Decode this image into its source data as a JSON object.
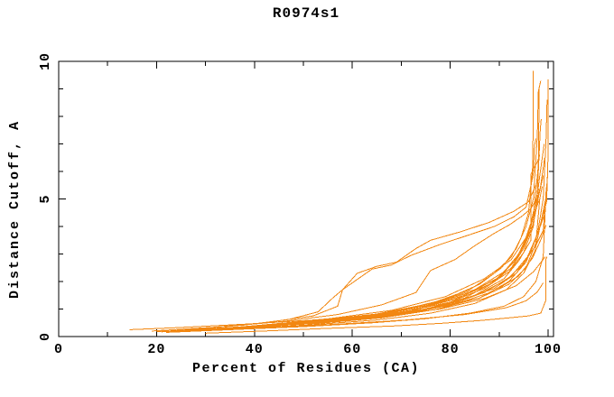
{
  "chart_data": {
    "type": "line",
    "title": "R0974s1",
    "xlabel": "Percent of Residues (CA)",
    "ylabel": "Distance Cutoff, A",
    "xlim": [
      0,
      100
    ],
    "ylim": [
      0,
      10
    ],
    "grid": false,
    "legend": null,
    "x_major_ticks": [
      0,
      20,
      40,
      60,
      80,
      100
    ],
    "x_minor_ticks": [
      10,
      30,
      50,
      70,
      90
    ],
    "y_major_ticks": [
      0,
      5,
      10
    ],
    "y_minor_ticks": [
      1,
      2,
      3,
      4,
      6,
      7,
      8,
      9
    ],
    "line_color": "#f28711",
    "axis_color": "#000000",
    "background_color": "#ffffff",
    "series": [
      [
        [
          30,
          0.12
        ],
        [
          42,
          0.2
        ],
        [
          55,
          0.3
        ],
        [
          68,
          0.38
        ],
        [
          78,
          0.48
        ],
        [
          86,
          0.58
        ],
        [
          92,
          0.68
        ],
        [
          96,
          0.75
        ],
        [
          98.5,
          0.85
        ],
        [
          99.5,
          1.3
        ],
        [
          99.5,
          2.8
        ],
        [
          99.8,
          2.9
        ]
      ],
      [
        [
          22,
          0.15
        ],
        [
          35,
          0.25
        ],
        [
          50,
          0.36
        ],
        [
          64,
          0.5
        ],
        [
          75,
          0.65
        ],
        [
          84,
          0.85
        ],
        [
          91,
          1.1
        ],
        [
          95,
          1.45
        ],
        [
          97.5,
          2.0
        ],
        [
          99,
          2.9
        ],
        [
          99.6,
          5.3
        ],
        [
          99.8,
          5.6
        ]
      ],
      [
        [
          14.5,
          0.25
        ],
        [
          24,
          0.32
        ],
        [
          38,
          0.45
        ],
        [
          52,
          0.6
        ],
        [
          66,
          0.8
        ],
        [
          77,
          1.05
        ],
        [
          86,
          1.4
        ],
        [
          92,
          1.9
        ],
        [
          95.5,
          2.5
        ],
        [
          97.5,
          3.4
        ],
        [
          98.3,
          5.0
        ],
        [
          98.8,
          5.45
        ]
      ],
      [
        [
          26,
          0.25
        ],
        [
          38,
          0.42
        ],
        [
          47,
          0.62
        ],
        [
          53,
          0.9
        ],
        [
          56,
          1.4
        ],
        [
          58,
          1.7
        ],
        [
          61,
          2.3
        ],
        [
          65,
          2.55
        ],
        [
          69,
          2.7
        ],
        [
          73,
          3.2
        ],
        [
          76,
          3.5
        ],
        [
          82,
          3.8
        ],
        [
          88,
          4.15
        ],
        [
          93,
          4.55
        ],
        [
          96,
          4.9
        ],
        [
          97.5,
          5.5
        ],
        [
          98,
          5.75
        ]
      ],
      [
        [
          28,
          0.28
        ],
        [
          42,
          0.5
        ],
        [
          52,
          0.75
        ],
        [
          57,
          1.1
        ],
        [
          58,
          1.7
        ],
        [
          60,
          1.95
        ],
        [
          64,
          2.45
        ],
        [
          68,
          2.6
        ],
        [
          72,
          2.95
        ],
        [
          78,
          3.35
        ],
        [
          84,
          3.7
        ],
        [
          89,
          4.0
        ],
        [
          93,
          4.35
        ],
        [
          95.5,
          4.7
        ],
        [
          97,
          5.9
        ],
        [
          97.2,
          6.9
        ],
        [
          97.5,
          7.2
        ]
      ],
      [
        [
          24,
          0.22
        ],
        [
          40,
          0.38
        ],
        [
          55,
          0.58
        ],
        [
          67,
          0.85
        ],
        [
          76,
          1.2
        ],
        [
          84,
          1.7
        ],
        [
          89,
          2.3
        ],
        [
          92.5,
          2.9
        ],
        [
          94.5,
          3.6
        ],
        [
          96,
          4.5
        ],
        [
          96.8,
          6.0
        ],
        [
          97,
          8.0
        ],
        [
          97,
          9.65
        ]
      ],
      [
        [
          27,
          0.24
        ],
        [
          42,
          0.4
        ],
        [
          57,
          0.62
        ],
        [
          69,
          0.92
        ],
        [
          79,
          1.35
        ],
        [
          86,
          1.9
        ],
        [
          90.5,
          2.5
        ],
        [
          93.5,
          3.2
        ],
        [
          95.5,
          4.0
        ],
        [
          97,
          5.0
        ],
        [
          97.8,
          7.3
        ],
        [
          98,
          8.9
        ],
        [
          98.5,
          9.3
        ]
      ],
      [
        [
          20,
          0.18
        ],
        [
          34,
          0.3
        ],
        [
          48,
          0.45
        ],
        [
          62,
          0.65
        ],
        [
          74,
          0.95
        ],
        [
          83,
          1.4
        ],
        [
          89,
          2.0
        ],
        [
          93,
          2.7
        ],
        [
          95.5,
          3.5
        ],
        [
          97,
          4.4
        ],
        [
          98,
          6.2
        ],
        [
          98.2,
          9.0
        ]
      ],
      [
        [
          30,
          0.26
        ],
        [
          45,
          0.44
        ],
        [
          60,
          0.66
        ],
        [
          72,
          0.95
        ],
        [
          81,
          1.35
        ],
        [
          88,
          1.9
        ],
        [
          92.5,
          2.5
        ],
        [
          95,
          3.2
        ],
        [
          97,
          4.1
        ],
        [
          98.5,
          5.5
        ],
        [
          99.3,
          6.5
        ]
      ],
      [
        [
          32,
          0.28
        ],
        [
          48,
          0.48
        ],
        [
          62,
          0.72
        ],
        [
          74,
          1.05
        ],
        [
          83,
          1.5
        ],
        [
          89.5,
          2.1
        ],
        [
          93.5,
          2.8
        ],
        [
          96,
          3.7
        ],
        [
          97.8,
          5.2
        ],
        [
          98.4,
          7.5
        ],
        [
          98.6,
          7.9
        ]
      ],
      [
        [
          25,
          0.2
        ],
        [
          40,
          0.34
        ],
        [
          54,
          0.5
        ],
        [
          67,
          0.72
        ],
        [
          77,
          1.05
        ],
        [
          85,
          1.5
        ],
        [
          91,
          2.1
        ],
        [
          94,
          2.75
        ],
        [
          96.5,
          3.5
        ],
        [
          96.5,
          5.9
        ],
        [
          97.8,
          6.35
        ],
        [
          98.3,
          6.6
        ]
      ],
      [
        [
          29,
          0.25
        ],
        [
          44,
          0.42
        ],
        [
          58,
          0.6
        ],
        [
          70,
          0.88
        ],
        [
          80,
          1.25
        ],
        [
          87,
          1.75
        ],
        [
          92,
          2.35
        ],
        [
          95,
          3.05
        ],
        [
          97,
          4.0
        ],
        [
          98.2,
          5.7
        ],
        [
          99.2,
          7.0
        ]
      ],
      [
        [
          33,
          0.3
        ],
        [
          49,
          0.5
        ],
        [
          63,
          0.76
        ],
        [
          75,
          1.12
        ],
        [
          84,
          1.6
        ],
        [
          90.5,
          2.2
        ],
        [
          94,
          3.0
        ],
        [
          96.5,
          4.0
        ],
        [
          98.2,
          5.2
        ],
        [
          99,
          5.85
        ]
      ],
      [
        [
          21,
          0.17
        ],
        [
          36,
          0.28
        ],
        [
          51,
          0.42
        ],
        [
          65,
          0.6
        ],
        [
          76,
          0.85
        ],
        [
          85,
          1.2
        ],
        [
          91.5,
          1.7
        ],
        [
          95,
          2.3
        ],
        [
          97.3,
          3.1
        ],
        [
          98.7,
          4.3
        ],
        [
          99.5,
          5.0
        ]
      ],
      [
        [
          23,
          0.2
        ],
        [
          38,
          0.33
        ],
        [
          53,
          0.48
        ],
        [
          66,
          0.68
        ],
        [
          77,
          0.98
        ],
        [
          86,
          1.4
        ],
        [
          92,
          2.0
        ],
        [
          95.5,
          2.7
        ],
        [
          97.8,
          3.7
        ],
        [
          99,
          5.0
        ],
        [
          99.6,
          7.2
        ],
        [
          99.8,
          8.6
        ]
      ],
      [
        [
          35,
          0.32
        ],
        [
          51,
          0.55
        ],
        [
          65,
          0.82
        ],
        [
          76,
          1.2
        ],
        [
          85,
          1.7
        ],
        [
          91,
          2.35
        ],
        [
          94.5,
          3.1
        ],
        [
          96.8,
          4.0
        ],
        [
          97.9,
          5.0
        ],
        [
          98.2,
          5.35
        ]
      ],
      [
        [
          38,
          0.36
        ],
        [
          54,
          0.62
        ],
        [
          68,
          0.95
        ],
        [
          79,
          1.45
        ],
        [
          87,
          2.1
        ],
        [
          92.5,
          2.8
        ],
        [
          95.5,
          3.6
        ],
        [
          97.2,
          4.5
        ],
        [
          98.4,
          5.05
        ]
      ],
      [
        [
          26,
          0.22
        ],
        [
          41,
          0.37
        ],
        [
          56,
          0.55
        ],
        [
          69,
          0.8
        ],
        [
          79,
          1.15
        ],
        [
          87,
          1.6
        ],
        [
          92.5,
          2.2
        ],
        [
          95.8,
          2.9
        ],
        [
          98,
          3.8
        ],
        [
          99.7,
          4.9
        ],
        [
          100,
          6.6
        ],
        [
          100,
          9.35
        ]
      ],
      [
        [
          31,
          0.27
        ],
        [
          46,
          0.44
        ],
        [
          60,
          0.64
        ],
        [
          72,
          0.9
        ],
        [
          82,
          1.28
        ],
        [
          89,
          1.75
        ],
        [
          93.5,
          2.3
        ],
        [
          96.3,
          3.0
        ],
        [
          98.2,
          3.9
        ],
        [
          99.4,
          4.5
        ]
      ],
      [
        [
          28,
          0.23
        ],
        [
          43,
          0.38
        ],
        [
          58,
          0.57
        ],
        [
          71,
          0.82
        ],
        [
          81,
          1.18
        ],
        [
          89,
          1.65
        ],
        [
          94,
          2.2
        ],
        [
          96.8,
          2.85
        ],
        [
          98.6,
          3.55
        ],
        [
          99.6,
          4.05
        ]
      ],
      [
        [
          34,
          0.3
        ],
        [
          50,
          0.48
        ],
        [
          64,
          0.7
        ],
        [
          76,
          1.02
        ],
        [
          85,
          1.48
        ],
        [
          91.5,
          2.05
        ],
        [
          95,
          2.65
        ],
        [
          97.6,
          3.35
        ],
        [
          99,
          3.85
        ],
        [
          99.9,
          5.85
        ]
      ],
      [
        [
          36,
          0.3
        ],
        [
          52,
          0.5
        ],
        [
          66,
          0.72
        ],
        [
          78,
          1.0
        ],
        [
          87,
          1.38
        ],
        [
          93.5,
          1.85
        ],
        [
          97,
          2.35
        ],
        [
          99,
          2.8
        ],
        [
          99.4,
          2.9
        ]
      ],
      [
        [
          40,
          0.3
        ],
        [
          57,
          0.45
        ],
        [
          71,
          0.6
        ],
        [
          83,
          0.8
        ],
        [
          91.5,
          1.05
        ],
        [
          95.5,
          1.3
        ],
        [
          97.8,
          1.62
        ],
        [
          99,
          1.95
        ]
      ],
      [
        [
          19,
          0.2
        ],
        [
          33,
          0.35
        ],
        [
          46,
          0.55
        ],
        [
          57,
          0.8
        ],
        [
          66,
          1.15
        ],
        [
          73,
          1.6
        ],
        [
          76,
          2.4
        ],
        [
          81,
          2.8
        ],
        [
          85,
          3.3
        ],
        [
          89,
          3.75
        ],
        [
          92,
          4.05
        ],
        [
          94.5,
          4.35
        ],
        [
          96.5,
          4.65
        ],
        [
          98,
          5.1
        ]
      ]
    ]
  }
}
